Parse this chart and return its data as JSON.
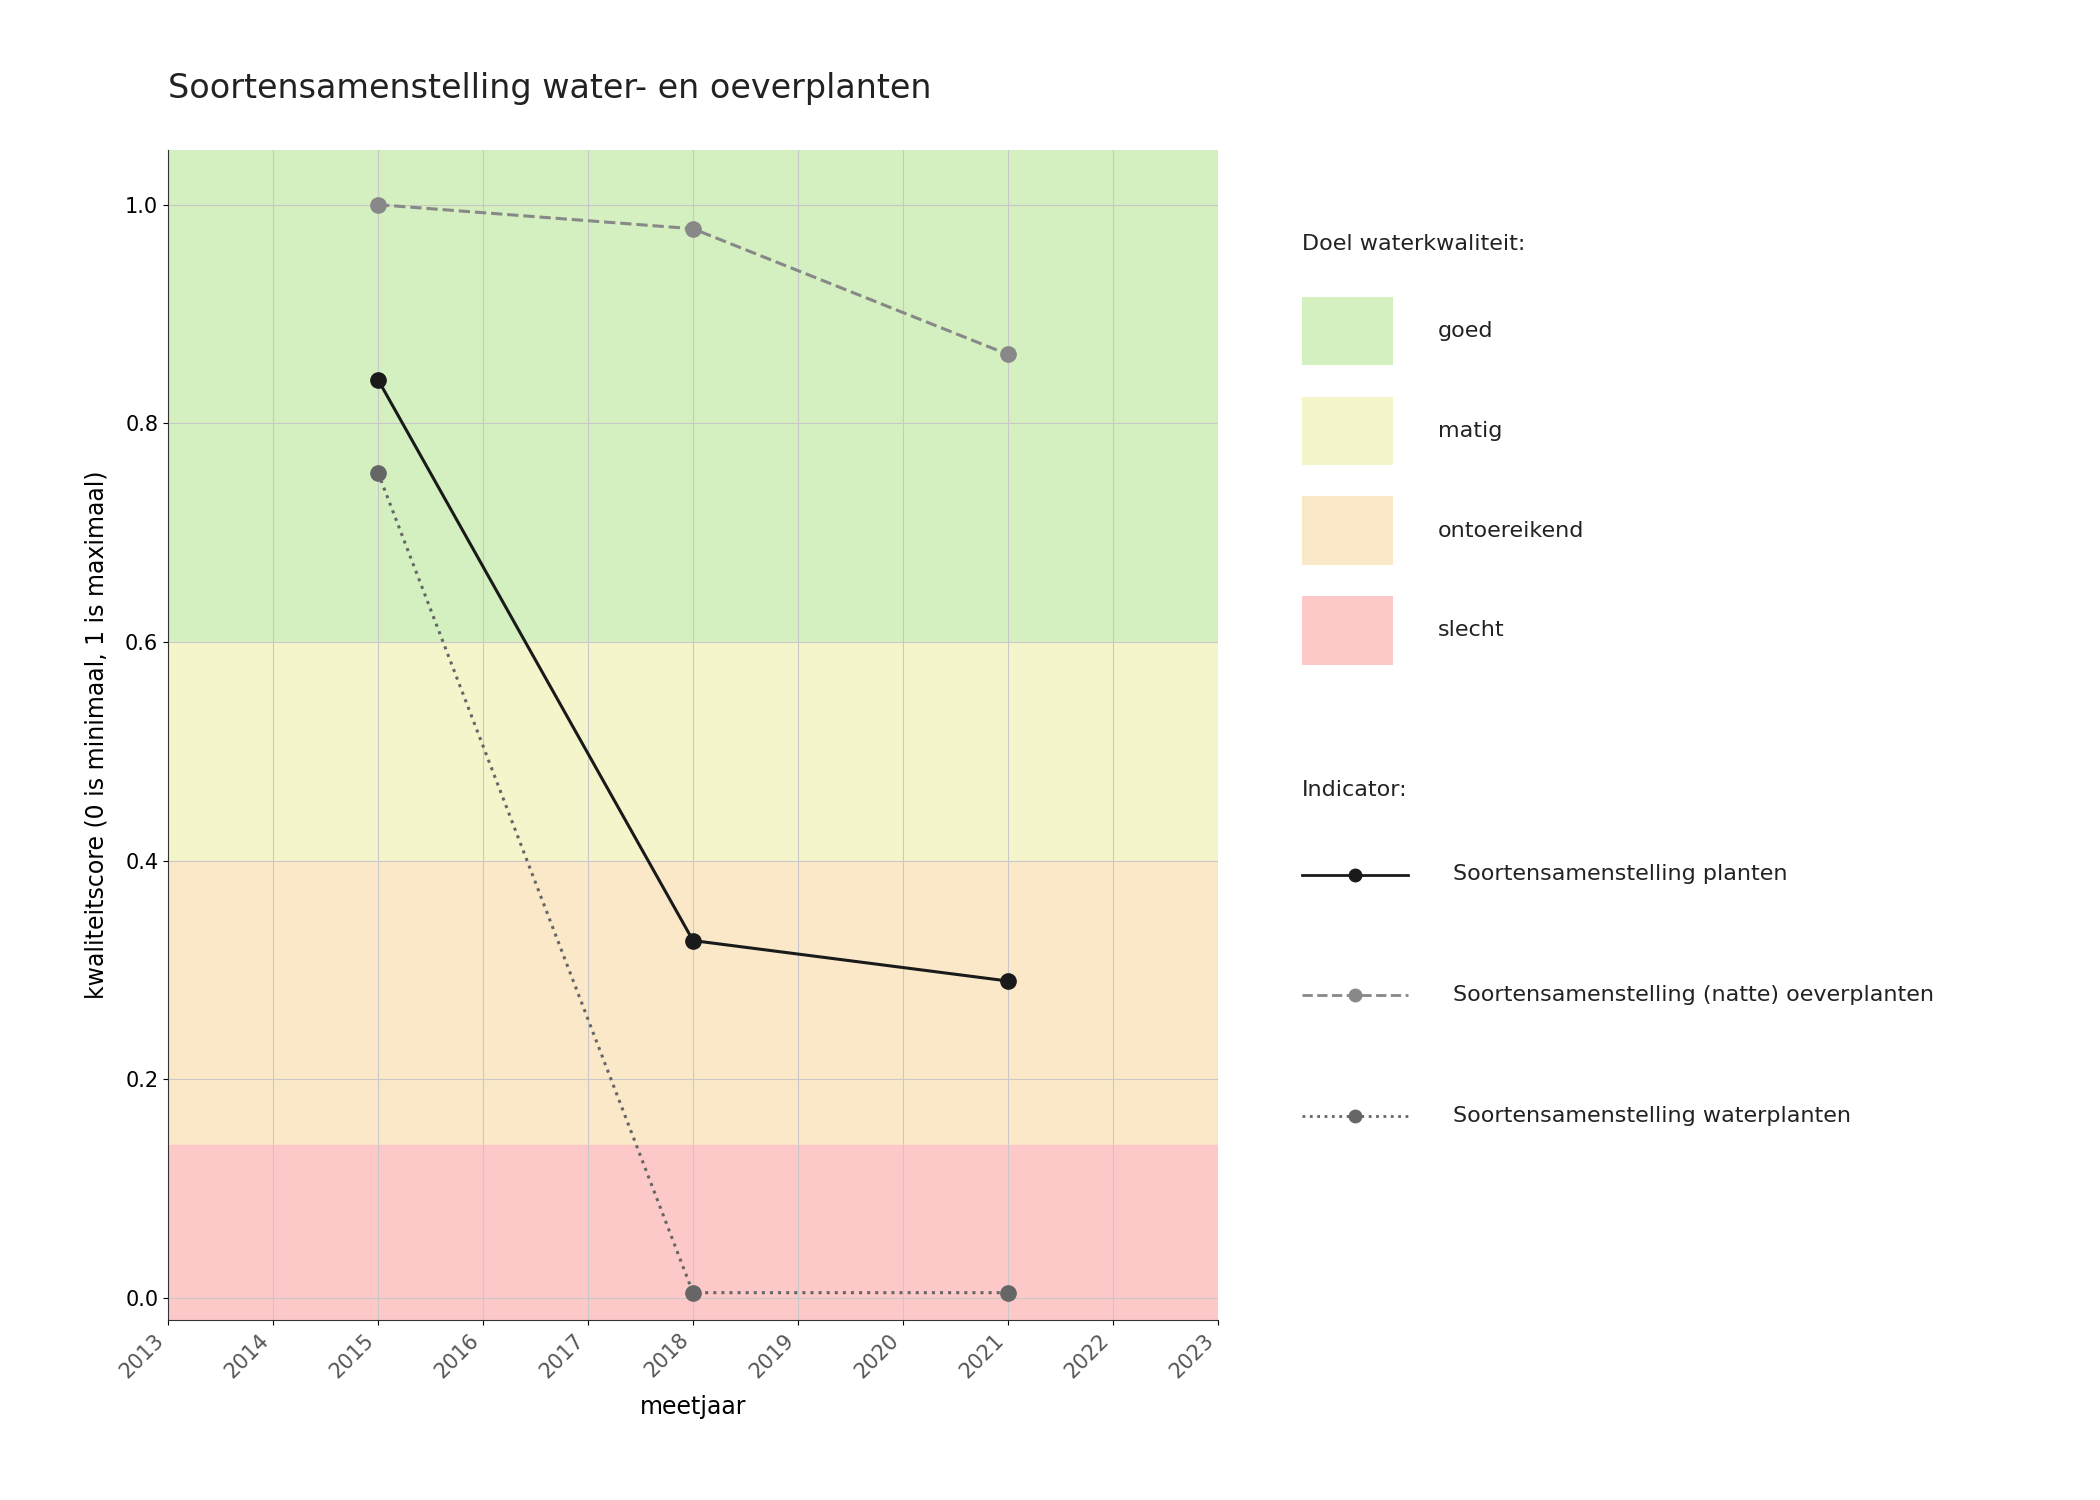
{
  "title": "Soortensamenstelling water- en oeverplanten",
  "xlabel": "meetjaar",
  "ylabel": "kwaliteitscore (0 is minimaal, 1 is maximaal)",
  "xlim": [
    2013,
    2023
  ],
  "ylim": [
    -0.02,
    1.05
  ],
  "xticks": [
    2013,
    2014,
    2015,
    2016,
    2017,
    2018,
    2019,
    2020,
    2021,
    2022,
    2023
  ],
  "yticks": [
    0.0,
    0.2,
    0.4,
    0.6,
    0.8,
    1.0
  ],
  "bg_color": "#ffffff",
  "quality_bands": {
    "goed": {
      "ymin": 0.6,
      "ymax": 1.05,
      "color": "#d4f0c0"
    },
    "matig": {
      "ymin": 0.4,
      "ymax": 0.6,
      "color": "#f5f5cc"
    },
    "ontoereikend": {
      "ymin": 0.14,
      "ymax": 0.4,
      "color": "#fae8c8"
    },
    "slecht": {
      "ymin": -0.02,
      "ymax": 0.14,
      "color": "#fcc8c8"
    }
  },
  "series": {
    "planten": {
      "x": [
        2015,
        2018,
        2021
      ],
      "y": [
        0.84,
        0.327,
        0.29
      ],
      "color": "#1a1a1a",
      "linestyle": "-",
      "marker": "o",
      "markersize": 11,
      "linewidth": 2.2,
      "label": "Soortensamenstelling planten"
    },
    "oeverplanten": {
      "x": [
        2015,
        2018,
        2021
      ],
      "y": [
        1.0,
        0.978,
        0.863
      ],
      "color": "#888888",
      "linestyle": "--",
      "marker": "o",
      "markersize": 11,
      "linewidth": 2.2,
      "label": "Soortensamenstelling (natte) oeverplanten"
    },
    "waterplanten": {
      "x": [
        2015,
        2018,
        2021
      ],
      "y": [
        0.755,
        0.005,
        0.005
      ],
      "color": "#666666",
      "linestyle": ":",
      "marker": "o",
      "markersize": 11,
      "linewidth": 2.2,
      "label": "Soortensamenstelling waterplanten"
    }
  },
  "legend": {
    "doel_title": "Doel waterkwaliteit:",
    "indicator_title": "Indicator:",
    "doel_items": [
      {
        "label": "goed",
        "color": "#d4f0c0"
      },
      {
        "label": "matig",
        "color": "#f5f5cc"
      },
      {
        "label": "ontoereikend",
        "color": "#fae8c8"
      },
      {
        "label": "slecht",
        "color": "#fcc8c8"
      }
    ]
  },
  "grid_color": "#c8c8c8",
  "title_fontsize": 24,
  "axis_label_fontsize": 17,
  "tick_fontsize": 15,
  "legend_fontsize": 16
}
